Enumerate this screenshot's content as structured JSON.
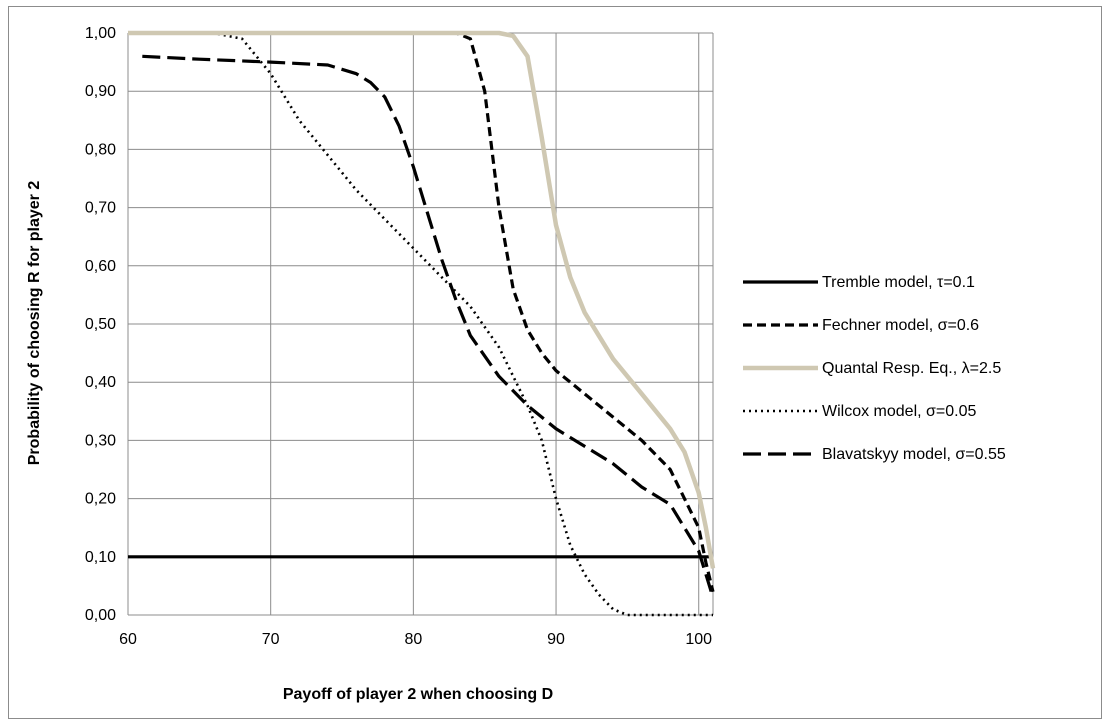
{
  "chart_data": {
    "type": "line",
    "xlabel": "Payoff of player 2 when choosing D",
    "ylabel": "Probability of choosing R for player 2",
    "xlim": [
      60,
      101
    ],
    "ylim": [
      0,
      1
    ],
    "x_ticks": [
      60,
      70,
      80,
      90,
      100
    ],
    "x_tick_labels": [
      "60",
      "70",
      "80",
      "90",
      "100"
    ],
    "y_ticks": [
      0,
      0.1,
      0.2,
      0.3,
      0.4,
      0.5,
      0.6,
      0.7,
      0.8,
      0.9,
      1.0
    ],
    "y_tick_labels": [
      "0,00",
      "0,10",
      "0,20",
      "0,30",
      "0,40",
      "0,50",
      "0,60",
      "0,70",
      "0,80",
      "0,90",
      "1,00"
    ],
    "grid": true,
    "legend_position": "right",
    "series": [
      {
        "name": "Tremble model, τ=0.1",
        "color": "#000000",
        "style": "solid",
        "x": [
          60,
          101
        ],
        "y": [
          0.1,
          0.1
        ]
      },
      {
        "name": "Fechner model, σ=0.6",
        "color": "#000000",
        "style": "dashed",
        "x": [
          60,
          70,
          80,
          83,
          84,
          85,
          86,
          87,
          88,
          89,
          90,
          92,
          94,
          96,
          98,
          100,
          100.5,
          101
        ],
        "y": [
          1.0,
          1.0,
          1.0,
          1.0,
          0.99,
          0.9,
          0.7,
          0.56,
          0.49,
          0.45,
          0.42,
          0.38,
          0.34,
          0.3,
          0.25,
          0.15,
          0.09,
          0.04
        ]
      },
      {
        "name": "Quantal Resp. Eq., λ=2.5",
        "color": "#cfc8b2",
        "style": "solid",
        "x": [
          60,
          70,
          80,
          86,
          87,
          88,
          89,
          90,
          91,
          92,
          94,
          96,
          98,
          99,
          100,
          100.5,
          101
        ],
        "y": [
          1.0,
          1.0,
          1.0,
          1.0,
          0.995,
          0.96,
          0.82,
          0.67,
          0.58,
          0.52,
          0.44,
          0.38,
          0.32,
          0.28,
          0.21,
          0.15,
          0.08
        ]
      },
      {
        "name": "Wilcox model, σ=0.05",
        "color": "#000000",
        "style": "dotted",
        "x": [
          60,
          64,
          66,
          68,
          70,
          72,
          74,
          76,
          78,
          80,
          82,
          84,
          86,
          88,
          89,
          90,
          91,
          92,
          93,
          94,
          95,
          97,
          101
        ],
        "y": [
          1.0,
          1.0,
          1.0,
          0.99,
          0.93,
          0.85,
          0.79,
          0.73,
          0.68,
          0.63,
          0.58,
          0.53,
          0.46,
          0.36,
          0.3,
          0.2,
          0.12,
          0.07,
          0.035,
          0.01,
          0.0,
          0.0,
          0.0
        ]
      },
      {
        "name": "Blavatskyy model, σ=0.55",
        "color": "#000000",
        "style": "longdash",
        "x": [
          61,
          65,
          70,
          74,
          76,
          77,
          78,
          79,
          80,
          81,
          82,
          83,
          84,
          86,
          88,
          90,
          92,
          94,
          96,
          98,
          100,
          100.5,
          101
        ],
        "y": [
          0.96,
          0.955,
          0.95,
          0.945,
          0.93,
          0.915,
          0.89,
          0.84,
          0.77,
          0.69,
          0.61,
          0.54,
          0.48,
          0.41,
          0.36,
          0.32,
          0.29,
          0.26,
          0.22,
          0.19,
          0.11,
          0.07,
          0.03
        ]
      }
    ]
  }
}
